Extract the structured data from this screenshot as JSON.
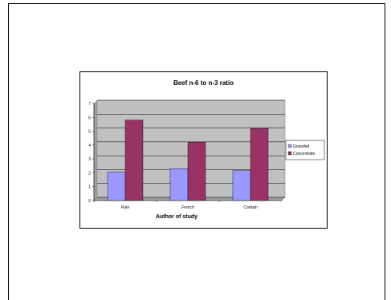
{
  "chart_data": {
    "type": "bar",
    "title": "Beef n-6 to n-3 ratio",
    "xlabel": "Author of study",
    "ylabel": "",
    "categories": [
      "Rule",
      "French",
      "Cordain"
    ],
    "series": [
      {
        "name": "Grassfed",
        "values": [
          2.05,
          2.3,
          2.15
        ],
        "color": "#9999ff"
      },
      {
        "name": "Concentrate",
        "values": [
          5.8,
          4.2,
          5.2
        ],
        "color": "#993366"
      }
    ],
    "ylim": [
      0,
      7
    ],
    "yticks": [
      0,
      1,
      2,
      3,
      4,
      5,
      6,
      7
    ],
    "grid": true,
    "plot_background": "#c0c0c0",
    "legend": "right"
  }
}
